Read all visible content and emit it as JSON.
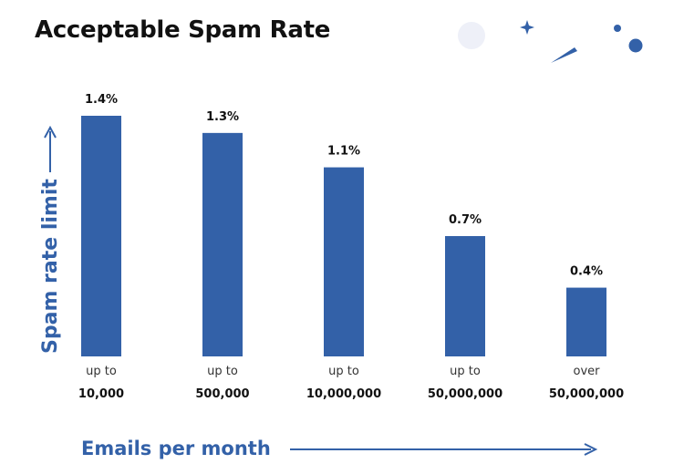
{
  "colors": {
    "bar": "#3361a8",
    "accent": "#3361a8",
    "text": "#111111",
    "decor_light": "#eef0f8"
  },
  "chart_data": {
    "type": "bar",
    "title": "Acceptable Spam Rate",
    "xlabel": "Emails per month",
    "ylabel": "Spam rate limit",
    "categories": [
      {
        "line1": "up to",
        "line2": "10,000"
      },
      {
        "line1": "up to",
        "line2": "500,000"
      },
      {
        "line1": "up to",
        "line2": "10,000,000"
      },
      {
        "line1": "up to",
        "line2": "50,000,000"
      },
      {
        "line1": "over",
        "line2": "50,000,000"
      }
    ],
    "values": [
      1.4,
      1.3,
      1.1,
      0.7,
      0.4
    ],
    "value_labels": [
      "1.4%",
      "1.3%",
      "1.1%",
      "0.7%",
      "0.4%"
    ],
    "unit": "%",
    "ylim": [
      0,
      1.4
    ],
    "grid": false,
    "legend": "none"
  },
  "decorations": [
    "circle-decoration",
    "sparkle-star-icon",
    "comet-icon",
    "dot-decoration"
  ]
}
